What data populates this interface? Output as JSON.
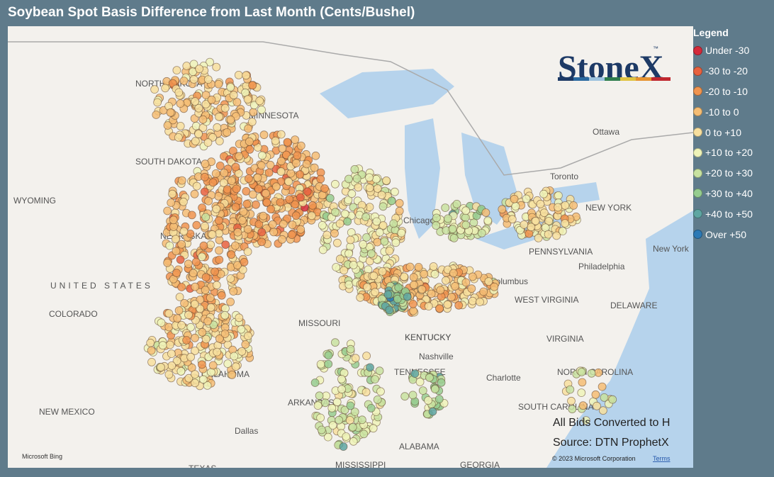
{
  "header": {
    "title": "Soybean Spot Basis Difference from Last Month (Cents/Bushel)"
  },
  "legend": {
    "title": "Legend",
    "items": [
      {
        "label": "Under -30",
        "color": "#d42a3a"
      },
      {
        "label": "-30 to -20",
        "color": "#e8623f"
      },
      {
        "label": "-20 to -10",
        "color": "#f0944f"
      },
      {
        "label": "-10 to 0",
        "color": "#f5bd74"
      },
      {
        "label": "0 to +10",
        "color": "#f7df9e"
      },
      {
        "label": "+10 to +20",
        "color": "#eef3b8"
      },
      {
        "label": "+20 to +30",
        "color": "#c8e2a0"
      },
      {
        "label": "+30 to +40",
        "color": "#96cd8f"
      },
      {
        "label": "+40 to +50",
        "color": "#5ea6a2"
      },
      {
        "label": "Over +50",
        "color": "#2b79b5"
      }
    ]
  },
  "logo": {
    "text": "StoneX",
    "mark": "™"
  },
  "map_labels": [
    "NORTH DAKOTA",
    "MINNESOTA",
    "SOUTH DAKOTA",
    "WYOMING",
    "NEBRASKA",
    "UNITED STATES",
    "COLORADO",
    "MISSOURI",
    "KENTUCKY",
    "OKLAHOMA",
    "ARKANSAS",
    "NEW MEXICO",
    "TENNESSEE",
    "Nashville",
    "Charlotte",
    "VIRGINIA",
    "WEST VIRGINIA",
    "Columbus",
    "PENNSYLVANIA",
    "Philadelphia",
    "NEW YORK",
    "New York",
    "Ottawa",
    "Chicago",
    "Dallas",
    "ALABAMA",
    "MISSISSIPPI",
    "GEORGIA",
    "TEXAS",
    "NORTH CAROLINA",
    "SOUTH CAROLINA",
    "KENTUCKY",
    "Toronto",
    "DELAWARE"
  ],
  "notes": {
    "conversion": "All Bids Converted to H",
    "source": "Source: DTN ProphetX",
    "copyright": "© 2023 Microsoft Corporation",
    "terms": "Terms",
    "bing": "Microsoft Bing"
  }
}
